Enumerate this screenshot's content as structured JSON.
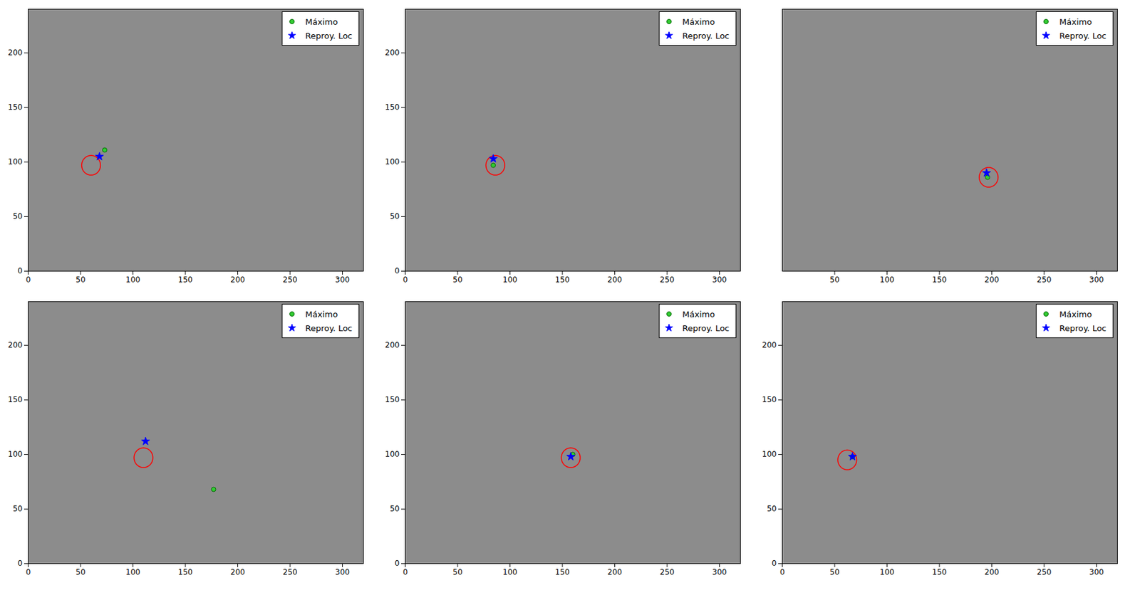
{
  "chart_data": [
    {
      "type": "scatter",
      "xlim": [
        0,
        320
      ],
      "ylim": [
        0,
        240
      ],
      "xticks": [
        0,
        50,
        100,
        150,
        200,
        250,
        300
      ],
      "yticks": [
        0,
        50,
        100,
        150,
        200
      ],
      "grid": false,
      "legend": "top-right",
      "series": [
        {
          "name": "Máximo",
          "color": "#33cc33",
          "marker": "circle",
          "x": [
            73
          ],
          "y": [
            111
          ]
        },
        {
          "name": "Reproy. Loc",
          "color": "#0000ff",
          "marker": "star",
          "x": [
            68
          ],
          "y": [
            105
          ]
        }
      ],
      "circle": {
        "x": 60,
        "y": 97,
        "r": 9,
        "color": "#ff0000"
      }
    },
    {
      "type": "scatter",
      "xlim": [
        0,
        320
      ],
      "ylim": [
        0,
        240
      ],
      "xticks": [
        0,
        50,
        100,
        150,
        200,
        250,
        300
      ],
      "yticks": [
        0,
        50,
        100,
        150,
        200
      ],
      "grid": false,
      "legend": "top-right",
      "series": [
        {
          "name": "Máximo",
          "color": "#33cc33",
          "marker": "circle",
          "x": [
            84
          ],
          "y": [
            97
          ]
        },
        {
          "name": "Reproy. Loc",
          "color": "#0000ff",
          "marker": "star",
          "x": [
            84
          ],
          "y": [
            103
          ]
        }
      ],
      "circle": {
        "x": 86,
        "y": 97,
        "r": 9,
        "color": "#ff0000"
      }
    },
    {
      "type": "scatter",
      "xlim": [
        0,
        320
      ],
      "ylim": [
        0,
        240
      ],
      "xticks": [
        50,
        100,
        150,
        200,
        250,
        300
      ],
      "yticks": [],
      "grid": false,
      "legend": "top-right",
      "tick_labels": "x",
      "series": [
        {
          "name": "Máximo",
          "color": "#33cc33",
          "marker": "circle",
          "x": [
            196
          ],
          "y": [
            86
          ]
        },
        {
          "name": "Reproy. Loc",
          "color": "#0000ff",
          "marker": "star",
          "x": [
            195
          ],
          "y": [
            90
          ]
        }
      ],
      "circle": {
        "x": 197,
        "y": 86,
        "r": 9,
        "color": "#ff0000"
      }
    },
    {
      "type": "scatter",
      "xlim": [
        0,
        320
      ],
      "ylim": [
        0,
        240
      ],
      "xticks": [
        0,
        50,
        100,
        150,
        200,
        250,
        300
      ],
      "yticks": [
        0,
        50,
        100,
        150,
        200
      ],
      "grid": false,
      "legend": "top-right",
      "series": [
        {
          "name": "Máximo",
          "color": "#33cc33",
          "marker": "circle",
          "x": [
            177
          ],
          "y": [
            68
          ]
        },
        {
          "name": "Reproy. Loc",
          "color": "#0000ff",
          "marker": "star",
          "x": [
            112
          ],
          "y": [
            112
          ]
        }
      ],
      "circle": {
        "x": 110,
        "y": 97,
        "r": 9,
        "color": "#ff0000"
      }
    },
    {
      "type": "scatter",
      "xlim": [
        0,
        320
      ],
      "ylim": [
        0,
        240
      ],
      "xticks": [
        0,
        50,
        100,
        150,
        200,
        250,
        300
      ],
      "yticks": [
        0,
        50,
        100,
        150,
        200
      ],
      "grid": false,
      "legend": "top-right",
      "series": [
        {
          "name": "Máximo",
          "color": "#33cc33",
          "marker": "circle",
          "x": [
            160
          ],
          "y": [
            100
          ]
        },
        {
          "name": "Reproy. Loc",
          "color": "#0000ff",
          "marker": "star",
          "x": [
            158
          ],
          "y": [
            98
          ]
        }
      ],
      "circle": {
        "x": 158,
        "y": 97,
        "r": 9,
        "color": "#ff0000"
      }
    },
    {
      "type": "scatter",
      "xlim": [
        0,
        320
      ],
      "ylim": [
        0,
        240
      ],
      "xticks": [
        0,
        50,
        100,
        150,
        200,
        250,
        300
      ],
      "yticks": [
        0,
        50,
        100,
        150,
        200
      ],
      "grid": false,
      "legend": "top-right",
      "series": [
        {
          "name": "Máximo",
          "color": "#33cc33",
          "marker": "circle",
          "x": [
            67
          ],
          "y": [
            98
          ]
        },
        {
          "name": "Reproy. Loc",
          "color": "#0000ff",
          "marker": "star",
          "x": [
            67
          ],
          "y": [
            98
          ]
        }
      ],
      "circle": {
        "x": 62,
        "y": 95,
        "r": 9,
        "color": "#ff0000"
      }
    }
  ]
}
